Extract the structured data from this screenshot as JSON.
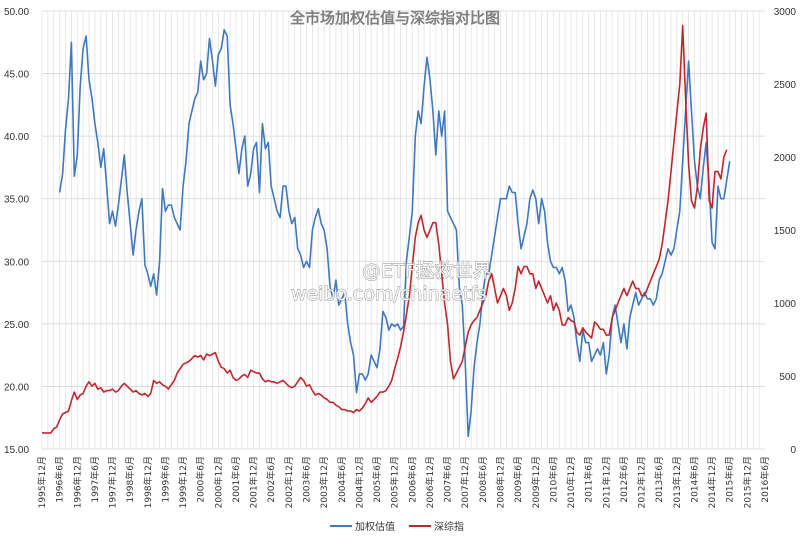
{
  "chart_data": {
    "type": "line",
    "title": "全市场加权估值与深综指对比图",
    "watermark": {
      "line1": "@ETF拯救世界",
      "line2": "weibo.com/chinaetfs"
    },
    "y_left": {
      "ylim": [
        15,
        50
      ],
      "ticks": [
        "15.00",
        "20.00",
        "25.00",
        "30.00",
        "35.00",
        "40.00",
        "45.00",
        "50.00"
      ],
      "grid": true
    },
    "y_right": {
      "ylim": [
        0,
        3000
      ],
      "ticks": [
        "0",
        "500",
        "1000",
        "1500",
        "2000",
        "2500",
        "3000"
      ]
    },
    "x_ticks": [
      "1995年12月",
      "1996年6月",
      "1996年12月",
      "1997年6月",
      "1997年12月",
      "1998年6月",
      "1998年12月",
      "1999年6月",
      "1999年12月",
      "2000年6月",
      "2000年12月",
      "2001年6月",
      "2001年12月",
      "2002年6月",
      "2002年12月",
      "2003年6月",
      "2003年12月",
      "2004年6月",
      "2004年12月",
      "2005年6月",
      "2005年12月",
      "2006年6月",
      "2006年12月",
      "2007年6月",
      "2007年12月",
      "2008年6月",
      "2008年12月",
      "2009年6月",
      "2009年12月",
      "2010年6月",
      "2010年12月",
      "2011年6月",
      "2011年12月",
      "2012年6月",
      "2012年12月",
      "2013年6月",
      "2013年12月",
      "2014年6月",
      "2014年12月",
      "2015年6月",
      "2015年12月",
      "2016年6月"
    ],
    "legend_position": "bottom",
    "series": [
      {
        "name": "加权估值",
        "axis": "left",
        "color": "#3f78bf",
        "start_month": 6,
        "values": [
          35.5,
          37.0,
          40.5,
          43.0,
          47.5,
          36.8,
          38.5,
          44.0,
          47.0,
          48.0,
          44.5,
          43.0,
          41.0,
          39.5,
          37.5,
          39.0,
          36.0,
          33.0,
          34.0,
          32.8,
          34.5,
          36.5,
          38.5,
          35.5,
          33.0,
          30.5,
          32.5,
          34.0,
          35.0,
          29.7,
          29.0,
          28.0,
          29.0,
          27.3,
          30.0,
          35.8,
          34.0,
          34.5,
          34.5,
          33.5,
          33.0,
          32.5,
          36.0,
          38.0,
          41.0,
          42.0,
          43.0,
          43.5,
          46.0,
          44.5,
          45.0,
          47.8,
          46.0,
          44.0,
          46.5,
          47.0,
          48.5,
          48.0,
          42.5,
          41.0,
          39.0,
          37.0,
          39.0,
          40.0,
          36.0,
          37.0,
          39.0,
          39.5,
          35.5,
          41.0,
          39.0,
          39.5,
          36.0,
          35.0,
          34.0,
          33.5,
          36.0,
          36.0,
          34.0,
          33.0,
          33.5,
          31.0,
          30.5,
          29.5,
          30.0,
          29.5,
          32.5,
          33.5,
          34.2,
          33.0,
          32.5,
          31.0,
          28.0,
          27.0,
          28.5,
          26.5,
          27.0,
          27.5,
          25.0,
          23.5,
          22.5,
          19.5,
          21.0,
          21.0,
          20.5,
          21.0,
          22.5,
          22.0,
          21.5,
          23.0,
          26.0,
          25.5,
          24.5,
          25.0,
          24.8,
          25.0,
          24.5,
          24.8,
          30.0,
          32.0,
          34.0,
          40.0,
          42.0,
          41.0,
          44.0,
          46.3,
          44.5,
          42.0,
          38.5,
          42.0,
          40.0,
          42.0,
          34.0,
          33.5,
          33.0,
          32.5,
          28.0,
          26.5,
          22.0,
          16.0,
          18.0,
          21.5,
          23.5,
          25.0,
          27.5,
          29.0,
          29.0,
          30.5,
          32.0,
          33.5,
          35.0,
          35.0,
          35.0,
          36.0,
          35.5,
          35.5,
          33.0,
          31.0,
          32.0,
          33.0,
          35.0,
          35.7,
          35.0,
          33.0,
          35.0,
          34.0,
          31.5,
          30.0,
          29.5,
          29.5,
          29.0,
          29.5,
          28.5,
          26.0,
          26.5,
          25.5,
          23.5,
          22.0,
          24.5,
          23.5,
          23.5,
          22.0,
          22.5,
          23.0,
          22.5,
          23.5,
          21.0,
          22.5,
          25.5,
          26.5,
          25.0,
          23.5,
          25.0,
          23.0,
          25.5,
          26.5,
          27.5,
          26.5,
          27.0,
          27.5,
          27.0,
          27.0,
          26.5,
          27.0,
          28.5,
          29.0,
          30.0,
          31.0,
          30.5,
          31.0,
          32.5,
          34.0,
          38.0,
          42.0,
          46.0,
          42.0,
          38.0,
          36.0,
          35.0,
          37.5,
          39.5,
          36.0,
          31.5,
          31.0,
          36.0,
          35.0,
          35.0,
          36.5,
          38.0
        ]
      },
      {
        "name": "深综指",
        "axis": "right",
        "color": "#c0272d",
        "start_month": 0,
        "values": [
          110,
          110,
          110,
          110,
          140,
          150,
          200,
          240,
          250,
          260,
          330,
          390,
          340,
          370,
          380,
          430,
          460,
          430,
          450,
          410,
          420,
          390,
          400,
          400,
          410,
          390,
          400,
          430,
          450,
          430,
          410,
          390,
          400,
          380,
          370,
          380,
          360,
          380,
          470,
          450,
          460,
          440,
          430,
          410,
          440,
          470,
          520,
          550,
          580,
          590,
          600,
          620,
          640,
          630,
          640,
          610,
          650,
          640,
          650,
          660,
          600,
          560,
          550,
          520,
          540,
          490,
          470,
          480,
          500,
          510,
          490,
          540,
          530,
          520,
          520,
          480,
          460,
          470,
          460,
          460,
          450,
          460,
          470,
          450,
          430,
          420,
          430,
          460,
          490,
          470,
          430,
          440,
          400,
          370,
          380,
          370,
          350,
          340,
          320,
          320,
          300,
          290,
          270,
          270,
          260,
          260,
          250,
          270,
          260,
          280,
          310,
          350,
          320,
          340,
          360,
          390,
          390,
          400,
          430,
          470,
          550,
          620,
          700,
          800,
          920,
          1050,
          1250,
          1450,
          1550,
          1600,
          1500,
          1450,
          1500,
          1550,
          1550,
          1400,
          1200,
          1000,
          850,
          600,
          480,
          520,
          560,
          600,
          700,
          800,
          850,
          880,
          900,
          950,
          1000,
          1050,
          1150,
          1200,
          1100,
          1000,
          1050,
          1100,
          1050,
          950,
          1000,
          1100,
          1250,
          1200,
          1250,
          1250,
          1200,
          1200,
          1100,
          1150,
          1100,
          1050,
          1000,
          1050,
          950,
          1000,
          950,
          850,
          850,
          900,
          880,
          870,
          800,
          780,
          830,
          800,
          780,
          760,
          870,
          850,
          820,
          820,
          780,
          780,
          900,
          950,
          1000,
          1050,
          1100,
          1050,
          1100,
          1150,
          1100,
          1100,
          1050,
          1050,
          1100,
          1150,
          1200,
          1250,
          1300,
          1400,
          1550,
          1700,
          1900,
          2100,
          2300,
          2500,
          2900,
          2400,
          1950,
          1700,
          1650,
          1800,
          2050,
          2200,
          2300,
          1700,
          1650,
          1900,
          1900,
          1850,
          2000,
          2050
        ]
      }
    ]
  }
}
